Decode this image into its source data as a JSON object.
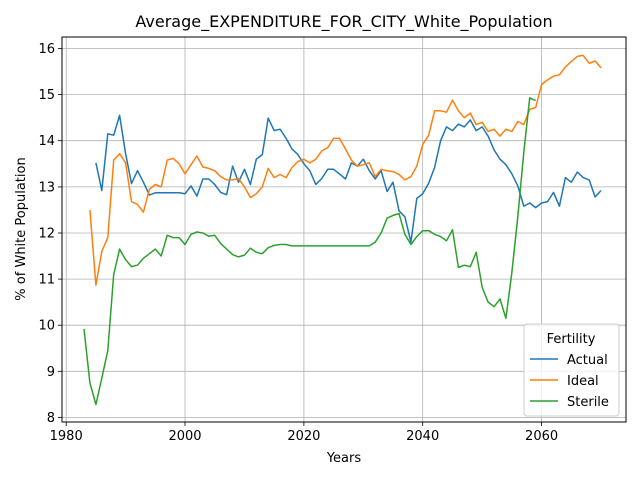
{
  "chart_data": {
    "type": "line",
    "title": "Average_EXPENDITURE_FOR_CITY_White_Population",
    "xlabel": "Years",
    "ylabel": "% of White Population",
    "xlim": [
      1979.3,
      2074.2
    ],
    "ylim": [
      7.9,
      16.25
    ],
    "xticks": [
      1980,
      2000,
      2020,
      2040,
      2060
    ],
    "yticks": [
      8,
      9,
      10,
      11,
      12,
      13,
      14,
      15,
      16
    ],
    "grid": true,
    "legend": {
      "title": "Fertility",
      "placement": "lower-right"
    },
    "series": [
      {
        "name": "Actual",
        "color": "#1f77b4",
        "x": [
          1985,
          1986,
          1987,
          1988,
          1989,
          1990,
          1991,
          1992,
          1993,
          1994,
          1995,
          1996,
          1997,
          1998,
          1999,
          2000,
          2001,
          2002,
          2003,
          2004,
          2005,
          2006,
          2007,
          2008,
          2009,
          2010,
          2011,
          2012,
          2013,
          2014,
          2015,
          2016,
          2017,
          2018,
          2019,
          2020,
          2021,
          2022,
          2023,
          2024,
          2025,
          2026,
          2027,
          2028,
          2029,
          2030,
          2031,
          2032,
          2033,
          2034,
          2035,
          2036,
          2037,
          2038,
          2039,
          2040,
          2041,
          2042,
          2043,
          2044,
          2045,
          2046,
          2047,
          2048,
          2049,
          2050,
          2051,
          2052,
          2053,
          2054,
          2055,
          2056,
          2057,
          2058,
          2059,
          2060,
          2061,
          2062,
          2063,
          2064,
          2065,
          2066,
          2067,
          2068,
          2069,
          2070
        ],
        "values": [
          13.52,
          12.92,
          14.15,
          14.12,
          14.55,
          13.72,
          13.07,
          13.35,
          13.1,
          12.82,
          12.87,
          12.87,
          12.87,
          12.87,
          12.87,
          12.85,
          13.02,
          12.8,
          13.17,
          13.17,
          13.05,
          12.88,
          12.83,
          13.45,
          13.1,
          13.38,
          13.05,
          13.6,
          13.7,
          14.49,
          14.22,
          14.25,
          14.05,
          13.82,
          13.7,
          13.5,
          13.35,
          13.05,
          13.18,
          13.38,
          13.38,
          13.28,
          13.17,
          13.52,
          13.45,
          13.6,
          13.35,
          13.17,
          13.35,
          12.9,
          13.1,
          12.48,
          12.35,
          11.8,
          12.75,
          12.85,
          13.08,
          13.42,
          14.0,
          14.3,
          14.22,
          14.36,
          14.3,
          14.45,
          14.22,
          14.3,
          14.1,
          13.8,
          13.6,
          13.48,
          13.28,
          13.02,
          12.58,
          12.65,
          12.55,
          12.65,
          12.68,
          12.88,
          12.58,
          13.2,
          13.1,
          13.32,
          13.2,
          13.15,
          12.78,
          12.92
        ]
      },
      {
        "name": "Ideal",
        "color": "#ff7f0e",
        "x": [
          1984,
          1985,
          1986,
          1987,
          1988,
          1989,
          1990,
          1991,
          1992,
          1993,
          1994,
          1995,
          1996,
          1997,
          1998,
          1999,
          2000,
          2001,
          2002,
          2003,
          2004,
          2005,
          2006,
          2007,
          2008,
          2009,
          2010,
          2011,
          2012,
          2013,
          2014,
          2015,
          2016,
          2017,
          2018,
          2019,
          2020,
          2021,
          2022,
          2023,
          2024,
          2025,
          2026,
          2027,
          2028,
          2029,
          2030,
          2031,
          2032,
          2033,
          2034,
          2035,
          2036,
          2037,
          2038,
          2039,
          2040,
          2041,
          2042,
          2043,
          2044,
          2045,
          2046,
          2047,
          2048,
          2049,
          2050,
          2051,
          2052,
          2053,
          2054,
          2055,
          2056,
          2057,
          2058,
          2059,
          2060,
          2061,
          2062,
          2063,
          2064,
          2065,
          2066,
          2067,
          2068,
          2069,
          2070
        ],
        "values": [
          12.5,
          10.87,
          11.6,
          11.9,
          13.58,
          13.72,
          13.52,
          12.68,
          12.62,
          12.45,
          12.95,
          13.05,
          13.0,
          13.58,
          13.62,
          13.5,
          13.28,
          13.48,
          13.67,
          13.43,
          13.4,
          13.35,
          13.22,
          13.15,
          13.15,
          13.18,
          13.0,
          12.77,
          12.85,
          13.0,
          13.4,
          13.2,
          13.27,
          13.2,
          13.42,
          13.55,
          13.6,
          13.52,
          13.6,
          13.78,
          13.85,
          14.05,
          14.05,
          13.82,
          13.58,
          13.45,
          13.48,
          13.52,
          13.22,
          13.38,
          13.35,
          13.33,
          13.27,
          13.15,
          13.22,
          13.45,
          13.92,
          14.12,
          14.65,
          14.65,
          14.62,
          14.88,
          14.65,
          14.5,
          14.6,
          14.35,
          14.4,
          14.2,
          14.25,
          14.1,
          14.25,
          14.2,
          14.42,
          14.35,
          14.68,
          14.72,
          15.22,
          15.32,
          15.4,
          15.43,
          15.6,
          15.72,
          15.83,
          15.85,
          15.68,
          15.73,
          15.58
        ]
      },
      {
        "name": "Sterile",
        "color": "#2ca02c",
        "x": [
          1983,
          1984,
          1985,
          1986,
          1987,
          1988,
          1989,
          1990,
          1991,
          1992,
          1993,
          1994,
          1995,
          1996,
          1997,
          1998,
          1999,
          2000,
          2001,
          2002,
          2003,
          2004,
          2005,
          2006,
          2007,
          2008,
          2009,
          2010,
          2011,
          2012,
          2013,
          2014,
          2015,
          2016,
          2017,
          2018,
          2019,
          2020,
          2021,
          2022,
          2023,
          2024,
          2025,
          2026,
          2027,
          2028,
          2029,
          2030,
          2031,
          2032,
          2033,
          2034,
          2035,
          2036,
          2037,
          2038,
          2039,
          2040,
          2041,
          2042,
          2043,
          2044,
          2045,
          2046,
          2047,
          2048,
          2049,
          2050,
          2051,
          2052,
          2053,
          2054,
          2055,
          2056,
          2057,
          2058,
          2059
        ],
        "values": [
          9.92,
          8.75,
          8.28,
          8.85,
          9.45,
          11.1,
          11.65,
          11.42,
          11.27,
          11.3,
          11.45,
          11.55,
          11.65,
          11.5,
          11.95,
          11.9,
          11.9,
          11.75,
          11.97,
          12.02,
          12.0,
          11.93,
          11.95,
          11.77,
          11.65,
          11.53,
          11.48,
          11.52,
          11.67,
          11.58,
          11.55,
          11.68,
          11.73,
          11.75,
          11.75,
          11.72,
          11.72,
          11.72,
          11.72,
          11.72,
          11.72,
          11.72,
          11.72,
          11.72,
          11.72,
          11.72,
          11.72,
          11.72,
          11.72,
          11.8,
          12.0,
          12.32,
          12.38,
          12.42,
          11.97,
          11.75,
          11.92,
          12.05,
          12.05,
          11.97,
          11.92,
          11.83,
          12.07,
          11.25,
          11.3,
          11.27,
          11.58,
          10.82,
          10.5,
          10.4,
          10.57,
          10.15,
          11.15,
          12.35,
          13.75,
          14.93,
          14.87
        ]
      }
    ]
  }
}
